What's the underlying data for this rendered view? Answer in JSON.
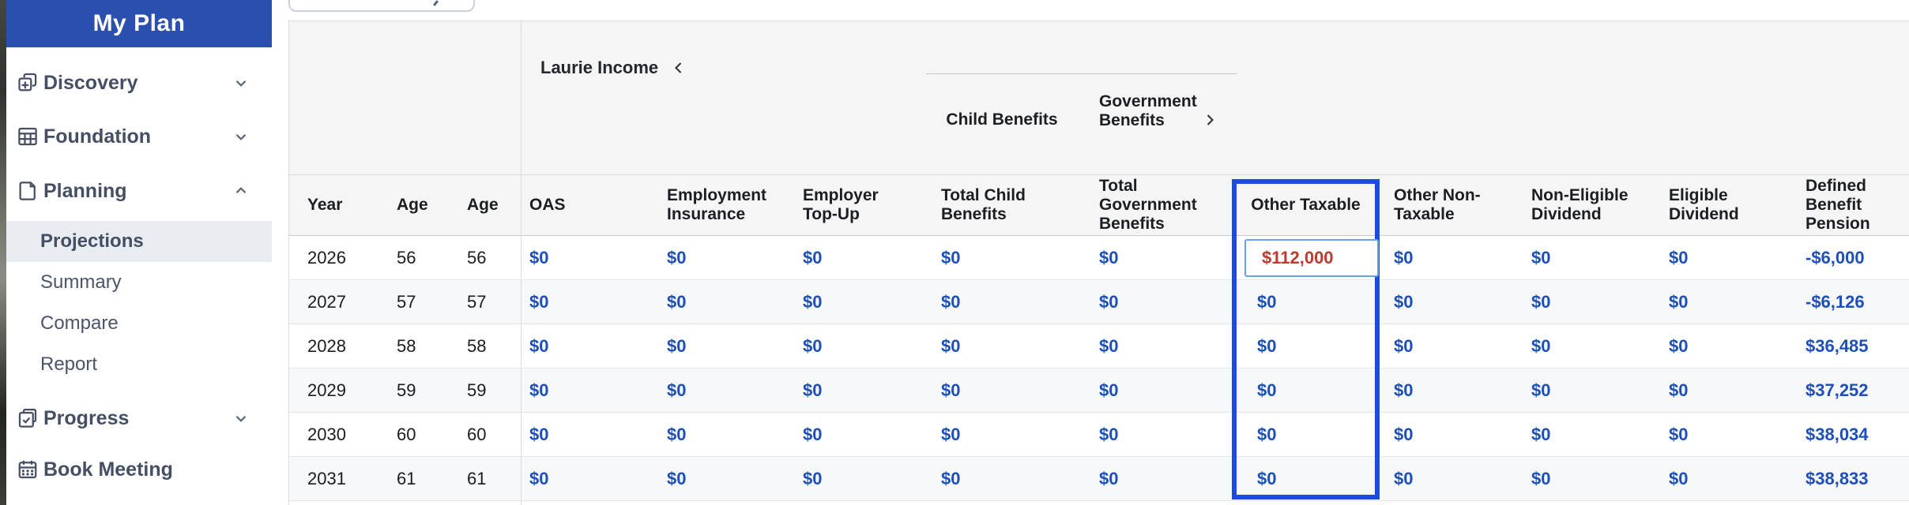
{
  "sidebar": {
    "title": "My Plan",
    "items": [
      {
        "label": "Discovery",
        "icon": "discovery-icon",
        "chevron": "down"
      },
      {
        "label": "Foundation",
        "icon": "foundation-icon",
        "chevron": "down"
      },
      {
        "label": "Planning",
        "icon": "planning-icon",
        "chevron": "up"
      },
      {
        "label": "Progress",
        "icon": "progress-icon",
        "chevron": "down"
      },
      {
        "label": "Book Meeting",
        "icon": "calendar-icon",
        "chevron": "none"
      }
    ],
    "planning_subitems": [
      {
        "label": "Projections",
        "active": true
      },
      {
        "label": "Summary",
        "active": false
      },
      {
        "label": "Compare",
        "active": false
      },
      {
        "label": "Report",
        "active": false
      }
    ]
  },
  "table": {
    "group_header": {
      "person": "Laurie Income",
      "child_benefits_label": "Child Benefits",
      "government_benefits_label": "Government Benefits"
    },
    "columns": [
      "Year",
      "Age",
      "Age",
      "OAS",
      "Employment Insurance",
      "Employer Top-Up",
      "Total Child Benefits",
      "Total Government Benefits",
      "Other Taxable",
      "Other Non-Taxable",
      "Non-Eligible Dividend",
      "Eligible Dividend",
      "Defined Benefit Pension"
    ],
    "selected_column": "Other Taxable",
    "editing_cell": {
      "row_index": 0,
      "col_index": 8,
      "value": "$112,000"
    },
    "rows": [
      [
        "2026",
        "56",
        "56",
        "$0",
        "$0",
        "$0",
        "$0",
        "$0",
        "$112,000",
        "$0",
        "$0",
        "$0",
        "-$6,000"
      ],
      [
        "2027",
        "57",
        "57",
        "$0",
        "$0",
        "$0",
        "$0",
        "$0",
        "$0",
        "$0",
        "$0",
        "$0",
        "-$6,126"
      ],
      [
        "2028",
        "58",
        "58",
        "$0",
        "$0",
        "$0",
        "$0",
        "$0",
        "$0",
        "$0",
        "$0",
        "$0",
        "$36,485"
      ],
      [
        "2029",
        "59",
        "59",
        "$0",
        "$0",
        "$0",
        "$0",
        "$0",
        "$0",
        "$0",
        "$0",
        "$0",
        "$37,252"
      ],
      [
        "2030",
        "60",
        "60",
        "$0",
        "$0",
        "$0",
        "$0",
        "$0",
        "$0",
        "$0",
        "$0",
        "$0",
        "$38,034"
      ],
      [
        "2031",
        "61",
        "61",
        "$0",
        "$0",
        "$0",
        "$0",
        "$0",
        "$0",
        "$0",
        "$0",
        "$0",
        "$38,833"
      ]
    ]
  },
  "colors": {
    "sidebar_header_blue": "#2a4fae",
    "selected_column_border_blue": "#1d4ae0",
    "value_blue": "#1c4fb8",
    "editing_value_red": "#bf3a2e",
    "active_item_bg": "#e9edf2",
    "table_header_bg": "#f5f5f6"
  }
}
